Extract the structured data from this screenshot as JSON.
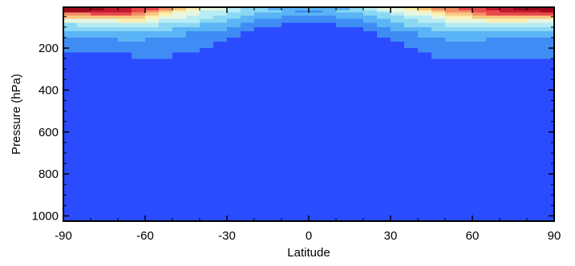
{
  "chart_data": {
    "type": "heatmap",
    "title": "",
    "xlabel": "Latitude",
    "ylabel": "Pressure (hPa)",
    "xlim": [
      -90,
      90
    ],
    "ylim": [
      1025,
      5
    ],
    "y_reversed": true,
    "x_ticks": [
      "-90",
      "-60",
      "-30",
      "0",
      "30",
      "60",
      "90"
    ],
    "x_tick_values": [
      -90,
      -60,
      -30,
      0,
      30,
      60,
      90
    ],
    "y_ticks": [
      "200",
      "400",
      "600",
      "800",
      "1000"
    ],
    "y_tick_values": [
      200,
      400,
      600,
      800,
      1000
    ],
    "colorbar": "none",
    "grid": false,
    "background_color": "#2b4bff",
    "colors": {
      "c1": "#2b4bff",
      "c2": "#3f8cf5",
      "c3": "#5ab4f5",
      "c4": "#8ad8f3",
      "c5": "#b8ecf5",
      "c6": "#e6f6df",
      "c7": "#fbf0b0",
      "c8": "#f9c882",
      "c9": "#f28e64",
      "c10": "#e8494b",
      "c11": "#c11a30",
      "c12": "#9e0a1c"
    },
    "level_boundaries_hpa": [
      5,
      20,
      30,
      45,
      60,
      80,
      100,
      120,
      150,
      170,
      200,
      220,
      250
    ],
    "cell_columns": [
      {
        "lat": [
          -90,
          -85
        ],
        "levels": [
          "c12",
          "c12",
          "c9",
          "c8",
          "c6",
          "c4",
          "c4",
          "c3",
          "c2",
          "c2",
          "c2",
          "c1"
        ]
      },
      {
        "lat": [
          -85,
          -80
        ],
        "levels": [
          "c12",
          "c12",
          "c9",
          "c8",
          "c6",
          "c5",
          "c4",
          "c3",
          "c2",
          "c2",
          "c2",
          "c1"
        ]
      },
      {
        "lat": [
          -80,
          -75
        ],
        "levels": [
          "c12",
          "c11",
          "c10",
          "c8",
          "c6",
          "c5",
          "c4",
          "c3",
          "c2",
          "c2",
          "c2",
          "c1"
        ]
      },
      {
        "lat": [
          -75,
          -70
        ],
        "levels": [
          "c11",
          "c11",
          "c10",
          "c8",
          "c6",
          "c5",
          "c4",
          "c3",
          "c2",
          "c2",
          "c2",
          "c1"
        ]
      },
      {
        "lat": [
          -70,
          -65
        ],
        "levels": [
          "c11",
          "c11",
          "c10",
          "c8",
          "c7",
          "c5",
          "c4",
          "c3",
          "c3",
          "c2",
          "c2",
          "c1"
        ]
      },
      {
        "lat": [
          -65,
          -60
        ],
        "levels": [
          "c10",
          "c10",
          "c9",
          "c8",
          "c7",
          "c5",
          "c4",
          "c3",
          "c3",
          "c2",
          "c2",
          "c2"
        ]
      },
      {
        "lat": [
          -60,
          -55
        ],
        "levels": [
          "c10",
          "c9",
          "c8",
          "c7",
          "c6",
          "c5",
          "c4",
          "c3",
          "c2",
          "c2",
          "c2",
          "c2"
        ]
      },
      {
        "lat": [
          -55,
          -50
        ],
        "levels": [
          "c9",
          "c8",
          "c7",
          "c6",
          "c5",
          "c4",
          "c4",
          "c3",
          "c2",
          "c2",
          "c2",
          "c2"
        ]
      },
      {
        "lat": [
          -50,
          -45
        ],
        "levels": [
          "c8",
          "c7",
          "c6",
          "c6",
          "c5",
          "c4",
          "c3",
          "c3",
          "c2",
          "c2",
          "c2",
          "c1"
        ]
      },
      {
        "lat": [
          -45,
          -40
        ],
        "levels": [
          "c7",
          "c6",
          "c6",
          "c5",
          "c5",
          "c4",
          "c3",
          "c2",
          "c2",
          "c2",
          "c2",
          "c1"
        ]
      },
      {
        "lat": [
          -40,
          -35
        ],
        "levels": [
          "c6",
          "c5",
          "c5",
          "c5",
          "c4",
          "c3",
          "c3",
          "c2",
          "c2",
          "c2",
          "c1",
          "c1"
        ]
      },
      {
        "lat": [
          -35,
          -30
        ],
        "levels": [
          "c6",
          "c5",
          "c5",
          "c4",
          "c4",
          "c3",
          "c3",
          "c2",
          "c2",
          "c1",
          "c1",
          "c1"
        ]
      },
      {
        "lat": [
          -30,
          -25
        ],
        "levels": [
          "c5",
          "c5",
          "c4",
          "c4",
          "c3",
          "c3",
          "c2",
          "c2",
          "c1",
          "c1",
          "c1",
          "c1"
        ]
      },
      {
        "lat": [
          -25,
          -20
        ],
        "levels": [
          "c4",
          "c4",
          "c4",
          "c3",
          "c3",
          "c2",
          "c2",
          "c1",
          "c1",
          "c1",
          "c1",
          "c1"
        ]
      },
      {
        "lat": [
          -20,
          -15
        ],
        "levels": [
          "c4",
          "c4",
          "c3",
          "c3",
          "c2",
          "c2",
          "c1",
          "c1",
          "c1",
          "c1",
          "c1",
          "c1"
        ]
      },
      {
        "lat": [
          -15,
          -10
        ],
        "levels": [
          "c3",
          "c4",
          "c3",
          "c3",
          "c2",
          "c2",
          "c1",
          "c1",
          "c1",
          "c1",
          "c1",
          "c1"
        ]
      },
      {
        "lat": [
          -10,
          -5
        ],
        "levels": [
          "c3",
          "c3",
          "c3",
          "c2",
          "c2",
          "c1",
          "c1",
          "c1",
          "c1",
          "c1",
          "c1",
          "c1"
        ]
      },
      {
        "lat": [
          -5,
          0
        ],
        "levels": [
          "c3",
          "c2",
          "c3",
          "c2",
          "c2",
          "c1",
          "c1",
          "c1",
          "c1",
          "c1",
          "c1",
          "c1"
        ]
      },
      {
        "lat": [
          0,
          5
        ],
        "levels": [
          "c3",
          "c2",
          "c3",
          "c2",
          "c2",
          "c1",
          "c1",
          "c1",
          "c1",
          "c1",
          "c1",
          "c1"
        ]
      },
      {
        "lat": [
          5,
          10
        ],
        "levels": [
          "c3",
          "c3",
          "c3",
          "c2",
          "c2",
          "c1",
          "c1",
          "c1",
          "c1",
          "c1",
          "c1",
          "c1"
        ]
      },
      {
        "lat": [
          10,
          15
        ],
        "levels": [
          "c3",
          "c4",
          "c3",
          "c3",
          "c2",
          "c2",
          "c1",
          "c1",
          "c1",
          "c1",
          "c1",
          "c1"
        ]
      },
      {
        "lat": [
          15,
          20
        ],
        "levels": [
          "c4",
          "c4",
          "c3",
          "c3",
          "c2",
          "c2",
          "c1",
          "c1",
          "c1",
          "c1",
          "c1",
          "c1"
        ]
      },
      {
        "lat": [
          20,
          25
        ],
        "levels": [
          "c5",
          "c4",
          "c4",
          "c3",
          "c3",
          "c2",
          "c2",
          "c1",
          "c1",
          "c1",
          "c1",
          "c1"
        ]
      },
      {
        "lat": [
          25,
          30
        ],
        "levels": [
          "c6",
          "c5",
          "c4",
          "c4",
          "c3",
          "c3",
          "c2",
          "c2",
          "c1",
          "c1",
          "c1",
          "c1"
        ]
      },
      {
        "lat": [
          30,
          35
        ],
        "levels": [
          "c6",
          "c6",
          "c5",
          "c4",
          "c4",
          "c3",
          "c3",
          "c2",
          "c2",
          "c1",
          "c1",
          "c1"
        ]
      },
      {
        "lat": [
          35,
          40
        ],
        "levels": [
          "c7",
          "c6",
          "c6",
          "c5",
          "c4",
          "c4",
          "c3",
          "c2",
          "c2",
          "c2",
          "c1",
          "c1"
        ]
      },
      {
        "lat": [
          40,
          45
        ],
        "levels": [
          "c8",
          "c7",
          "c6",
          "c5",
          "c5",
          "c4",
          "c3",
          "c3",
          "c2",
          "c2",
          "c2",
          "c1"
        ]
      },
      {
        "lat": [
          45,
          50
        ],
        "levels": [
          "c9",
          "c8",
          "c7",
          "c6",
          "c5",
          "c4",
          "c4",
          "c3",
          "c2",
          "c2",
          "c2",
          "c2"
        ]
      },
      {
        "lat": [
          50,
          55
        ],
        "levels": [
          "c9",
          "c9",
          "c8",
          "c7",
          "c6",
          "c5",
          "c4",
          "c3",
          "c3",
          "c2",
          "c2",
          "c2"
        ]
      },
      {
        "lat": [
          55,
          60
        ],
        "levels": [
          "c10",
          "c9",
          "c8",
          "c7",
          "c6",
          "c5",
          "c4",
          "c3",
          "c3",
          "c2",
          "c2",
          "c2"
        ]
      },
      {
        "lat": [
          60,
          65
        ],
        "levels": [
          "c10",
          "c10",
          "c9",
          "c8",
          "c6",
          "c5",
          "c4",
          "c3",
          "c3",
          "c2",
          "c2",
          "c2"
        ]
      },
      {
        "lat": [
          65,
          70
        ],
        "levels": [
          "c11",
          "c10",
          "c10",
          "c8",
          "c7",
          "c5",
          "c4",
          "c3",
          "c2",
          "c2",
          "c2",
          "c2"
        ]
      },
      {
        "lat": [
          70,
          75
        ],
        "levels": [
          "c11",
          "c11",
          "c10",
          "c8",
          "c7",
          "c5",
          "c4",
          "c3",
          "c2",
          "c2",
          "c2",
          "c2"
        ]
      },
      {
        "lat": [
          75,
          80
        ],
        "levels": [
          "c12",
          "c11",
          "c10",
          "c8",
          "c7",
          "c5",
          "c4",
          "c3",
          "c2",
          "c2",
          "c2",
          "c2"
        ]
      },
      {
        "lat": [
          80,
          85
        ],
        "levels": [
          "c12",
          "c11",
          "c10",
          "c8",
          "c6",
          "c5",
          "c4",
          "c3",
          "c2",
          "c2",
          "c2",
          "c2"
        ]
      },
      {
        "lat": [
          85,
          90
        ],
        "levels": [
          "c12",
          "c12",
          "c10",
          "c8",
          "c6",
          "c5",
          "c4",
          "c3",
          "c2",
          "c2",
          "c2",
          "c2"
        ]
      }
    ]
  }
}
